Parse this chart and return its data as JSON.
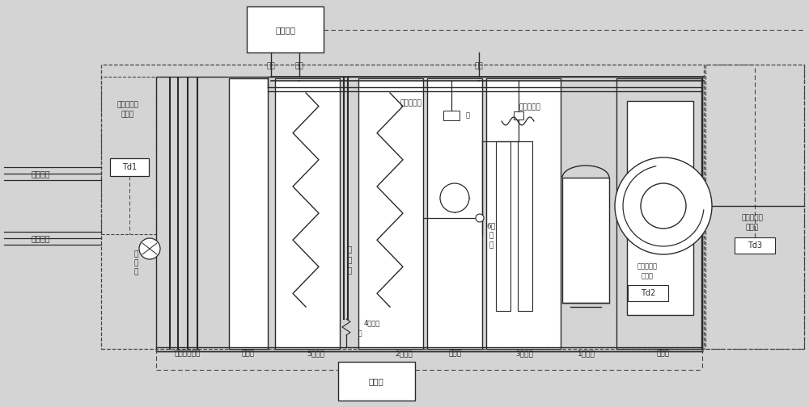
{
  "bg_color": "#d4d4d4",
  "line_color": "#2a2a2a",
  "dashed_color": "#444444",
  "box_fill": "#ffffff",
  "fs": 6.0,
  "labels": {
    "heat_pump": "热泵主机",
    "controller": "控制器",
    "outdoor_sensor_1": "室外温湿度",
    "outdoor_sensor_2": "传感器",
    "indoor_sensor_1": "室内温湿度",
    "indoor_sensor_2": "传感器",
    "supply_sensor_1": "供风温湿度",
    "supply_sensor_2": "传感器",
    "outdoor_air": "室外新风",
    "indoor_return": "室内回风",
    "proportion_valve_1": "比",
    "proportion_valve_2": "例",
    "proportion_valve_3": "阀",
    "filter": "防虫网初中效",
    "surface_cooler": "表冷器",
    "evaporator": "5蒸发器",
    "reheater": "2再热器",
    "humidifier": "加湿器",
    "condenser": "3冷凝器",
    "compressor": "1压缩机",
    "fan": "送风机",
    "drain_board_1": "挡",
    "drain_board_2": "水",
    "drain_board_3": "板",
    "expansion_valve": "4膨胀阀",
    "solenoid_valve_1": "6电",
    "solenoid_valve_2": "磁",
    "solenoid_valve_3": "阀",
    "pressure_valve": "压力调节阀",
    "water_solenoid": "补水电磁阀",
    "water_out": "出水",
    "water_in_left": "进水",
    "water_in_right": "进水",
    "td1": "Td1",
    "td2": "Td2",
    "td3": "Td3",
    "valve_sym": "阀"
  }
}
